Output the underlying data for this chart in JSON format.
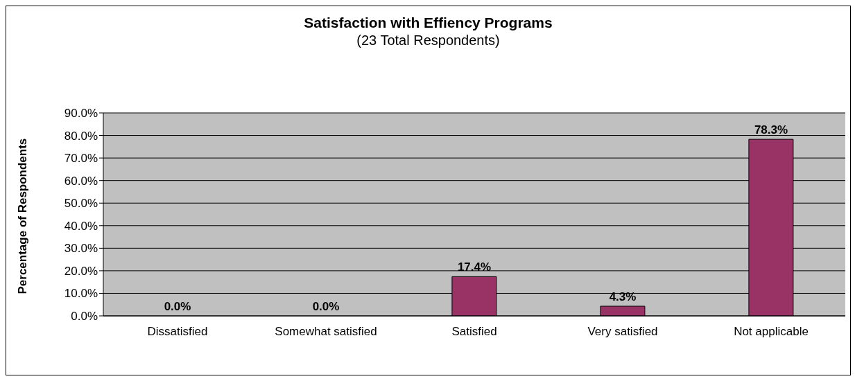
{
  "chart_data": {
    "type": "bar",
    "title": "Satisfaction with Effiency Programs",
    "subtitle": "(23 Total Respondents)",
    "ylabel": "Percentage of Respondents",
    "categories": [
      "Dissatisfied",
      "Somewhat satisfied",
      "Satisfied",
      "Very satisfied",
      "Not applicable"
    ],
    "values": [
      0,
      0,
      17.4,
      4.3,
      78.3
    ],
    "value_labels": [
      "0.0%",
      "0.0%",
      "17.4%",
      "4.3%",
      "78.3%"
    ],
    "color": "#993366",
    "ylim": [
      0,
      90
    ],
    "yticks": [
      {
        "value": 0,
        "label": "0.0%"
      },
      {
        "value": 10,
        "label": "10.0%"
      },
      {
        "value": 20,
        "label": "20.0%"
      },
      {
        "value": 30,
        "label": "30.0%"
      },
      {
        "value": 40,
        "label": "40.0%"
      },
      {
        "value": 50,
        "label": "50.0%"
      },
      {
        "value": 60,
        "label": "60.0%"
      },
      {
        "value": 70,
        "label": "70.0%"
      },
      {
        "value": 80,
        "label": "80.0%"
      },
      {
        "value": 90,
        "label": "90.0%"
      }
    ],
    "grid": "y"
  }
}
